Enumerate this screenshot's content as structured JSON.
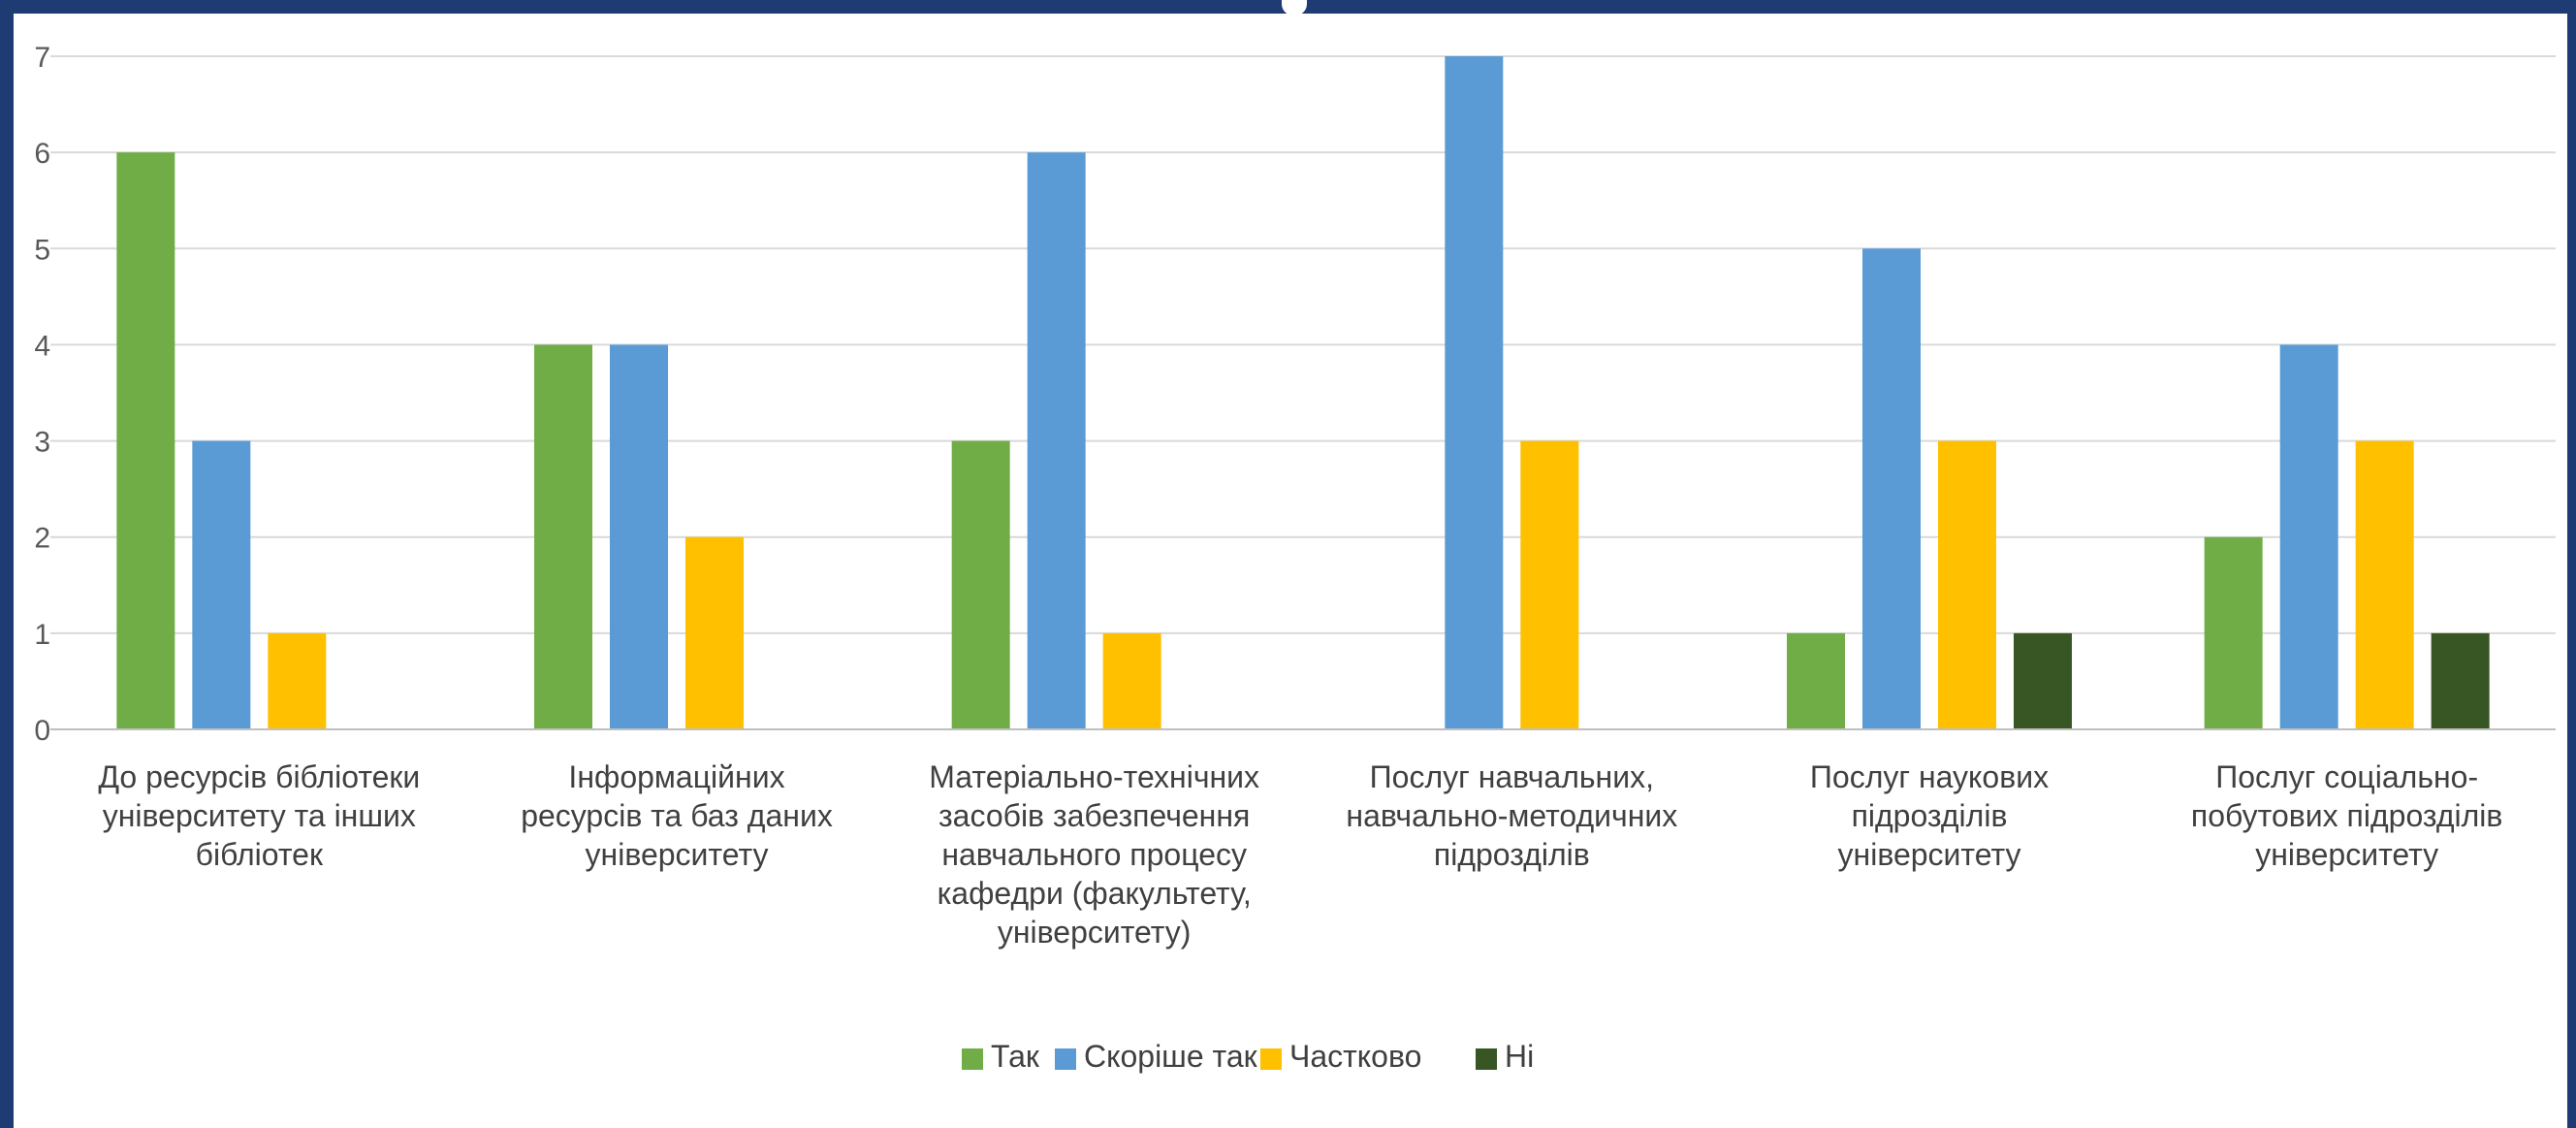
{
  "chart_data": {
    "type": "bar",
    "title": "",
    "xlabel": "",
    "ylabel": "",
    "ylim": [
      0,
      7
    ],
    "yticks": [
      0,
      1,
      2,
      3,
      4,
      5,
      6,
      7
    ],
    "grid": true,
    "legend_position": "bottom",
    "categories": [
      [
        "До ресурсів бібліотеки",
        "університету та інших",
        "бібліотек"
      ],
      [
        "Інформаційних",
        "ресурсів та баз даних",
        "університету"
      ],
      [
        "Матеріально-технічних",
        "засобів забезпечення",
        "навчального процесу",
        "кафедри (факультету,",
        "університету)"
      ],
      [
        "Послуг навчальних,",
        "навчально-методичних",
        "підрозділів"
      ],
      [
        "Послуг наукових",
        "підрозділів",
        "університету"
      ],
      [
        "Послуг соціально-",
        "побутових підрозділів",
        "університету"
      ]
    ],
    "series": [
      {
        "name": "Так",
        "color": "#70ad47",
        "values": [
          6,
          4,
          3,
          0,
          1,
          2
        ]
      },
      {
        "name": "Скоріше так",
        "color": "#5b9bd5",
        "values": [
          3,
          4,
          6,
          7,
          5,
          4
        ]
      },
      {
        "name": "Частково",
        "color": "#ffc000",
        "values": [
          1,
          2,
          1,
          3,
          3,
          3
        ]
      },
      {
        "name": "Ні",
        "color": "#375623",
        "values": [
          0,
          0,
          0,
          0,
          1,
          1
        ]
      }
    ]
  }
}
